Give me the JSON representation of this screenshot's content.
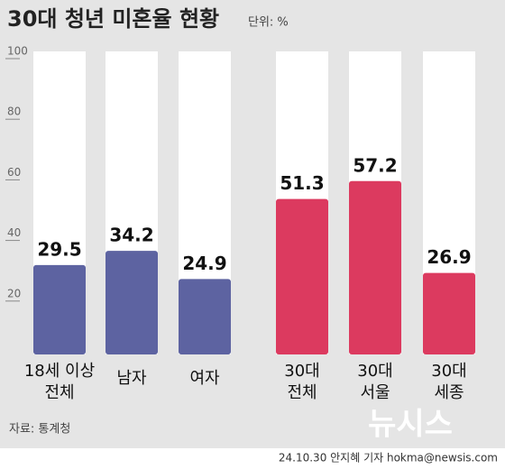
{
  "chart_data": {
    "type": "bar",
    "title": "30대 청년 미혼율 현황",
    "unit": "단위: %",
    "categories": [
      [
        "18세 이상",
        "전체"
      ],
      [
        "남자"
      ],
      [
        "여자"
      ],
      [
        "30대",
        "전체"
      ],
      [
        "30대",
        "서울"
      ],
      [
        "30대",
        "세종"
      ]
    ],
    "values": [
      29.5,
      34.2,
      24.9,
      51.3,
      57.2,
      26.9
    ],
    "colors": [
      "#5d63a1",
      "#5d63a1",
      "#5d63a1",
      "#dc3a5f",
      "#dc3a5f",
      "#dc3a5f"
    ],
    "ylim": [
      0,
      100
    ],
    "yticks": [
      20,
      40,
      60,
      80,
      100
    ],
    "source": "자료: 통계청",
    "watermark": "뉴시스",
    "credit": "24.10.30 안지혜 기자 hokma@newsis.com"
  }
}
